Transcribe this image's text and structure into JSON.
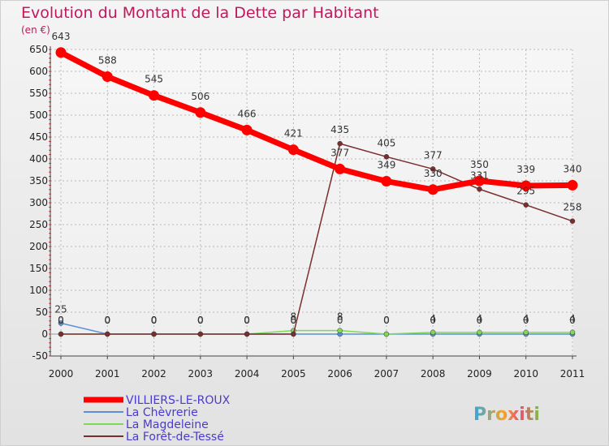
{
  "chart_data": {
    "type": "line",
    "title": "Evolution du Montant de la Dette par Habitant",
    "ylabel": "(en €)",
    "xlabel": "",
    "ylim": [
      -50,
      650
    ],
    "yticks": [
      -50,
      0,
      50,
      100,
      150,
      200,
      250,
      300,
      350,
      400,
      450,
      500,
      550,
      600,
      650
    ],
    "grid": true,
    "categories": [
      "2000",
      "2001",
      "2002",
      "2003",
      "2004",
      "2005",
      "2006",
      "2007",
      "2008",
      "2009",
      "2010",
      "2011"
    ],
    "series": [
      {
        "name": "VILLIERS-LE-ROUX",
        "color": "#ff0000",
        "values": [
          643,
          588,
          545,
          506,
          466,
          421,
          377,
          349,
          330,
          350,
          339,
          340
        ],
        "labels": [
          "643",
          "588",
          "545",
          "506",
          "466",
          "421",
          "377",
          "349",
          "330",
          "350",
          "339",
          "340"
        ]
      },
      {
        "name": "La Chèvrerie",
        "color": "#5b8fd6",
        "values": [
          25,
          0,
          0,
          0,
          0,
          0,
          0,
          0,
          0,
          0,
          0,
          0
        ],
        "labels": [
          "25",
          "0",
          "0",
          "0",
          "0",
          "0",
          "0",
          "0",
          "0",
          "0",
          "0",
          "0"
        ]
      },
      {
        "name": "La Magdeleine",
        "color": "#7ed957",
        "values": [
          0,
          0,
          0,
          0,
          0,
          8,
          8,
          0,
          4,
          4,
          4,
          4
        ],
        "labels": [
          "0",
          "0",
          "0",
          "0",
          "0",
          "8",
          "8",
          "0",
          "4",
          "4",
          "4",
          "4"
        ]
      },
      {
        "name": "La Forêt-de-Tessé",
        "color": "#7a2e2e",
        "values": [
          0,
          0,
          0,
          0,
          0,
          0,
          435,
          405,
          377,
          331,
          295,
          258
        ],
        "labels": [
          "0",
          "0",
          "0",
          "0",
          "0",
          "0",
          "435",
          "405",
          "377",
          "331",
          "295",
          "258"
        ]
      }
    ]
  },
  "brand": "Proxiti"
}
